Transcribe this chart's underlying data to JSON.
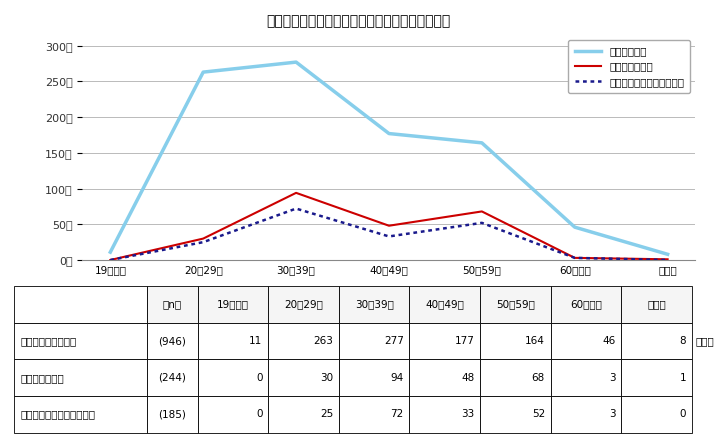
{
  "title": "》表５　住居喪失不安定就労者等の年齢別人数》",
  "title_display": "【表５　住居喪失不安定就労者等の年齢別人数】",
  "categories": [
    "19歳以下",
    "20～29歳",
    "30～39歳",
    "40～49歳",
    "50～59歳",
    "60歳以上",
    "無回答"
  ],
  "series": [
    {
      "name": "オールナイト",
      "values": [
        11,
        263,
        277,
        177,
        164,
        46,
        8
      ],
      "color": "#87CEEB",
      "linestyle": "solid",
      "linewidth": 2.5
    },
    {
      "name": "うち住居喪失者",
      "values": [
        0,
        30,
        94,
        48,
        68,
        3,
        1
      ],
      "color": "#CC0000",
      "linestyle": "solid",
      "linewidth": 1.5
    },
    {
      "name": "うち住居喪失不安定就労者",
      "values": [
        0,
        25,
        72,
        33,
        52,
        3,
        0
      ],
      "color": "#1a1a8c",
      "linestyle": "dotted",
      "linewidth": 1.8
    }
  ],
  "yticks": [
    0,
    50,
    100,
    150,
    200,
    250,
    300
  ],
  "ylim": [
    0,
    315
  ],
  "ylabel_suffix": "人",
  "table_rows": [
    {
      "label": "オールナイト利用者",
      "n": "(946)",
      "values": [
        "11",
        "263",
        "277",
        "177",
        "164",
        "46",
        "8"
      ]
    },
    {
      "label": "うち住居喪失者",
      "n": "(244)",
      "values": [
        "0",
        "30",
        "94",
        "48",
        "68",
        "3",
        "1"
      ]
    },
    {
      "label": "うち住居喪失不安定就労者",
      "n": "(185)",
      "values": [
        "0",
        "25",
        "72",
        "33",
        "52",
        "3",
        "0"
      ]
    }
  ],
  "unit_label": "（人）",
  "n_label": "（n）",
  "background_color": "#ffffff",
  "grid_color": "#b0b0b0",
  "table_header_bg": "#f5f5f5"
}
